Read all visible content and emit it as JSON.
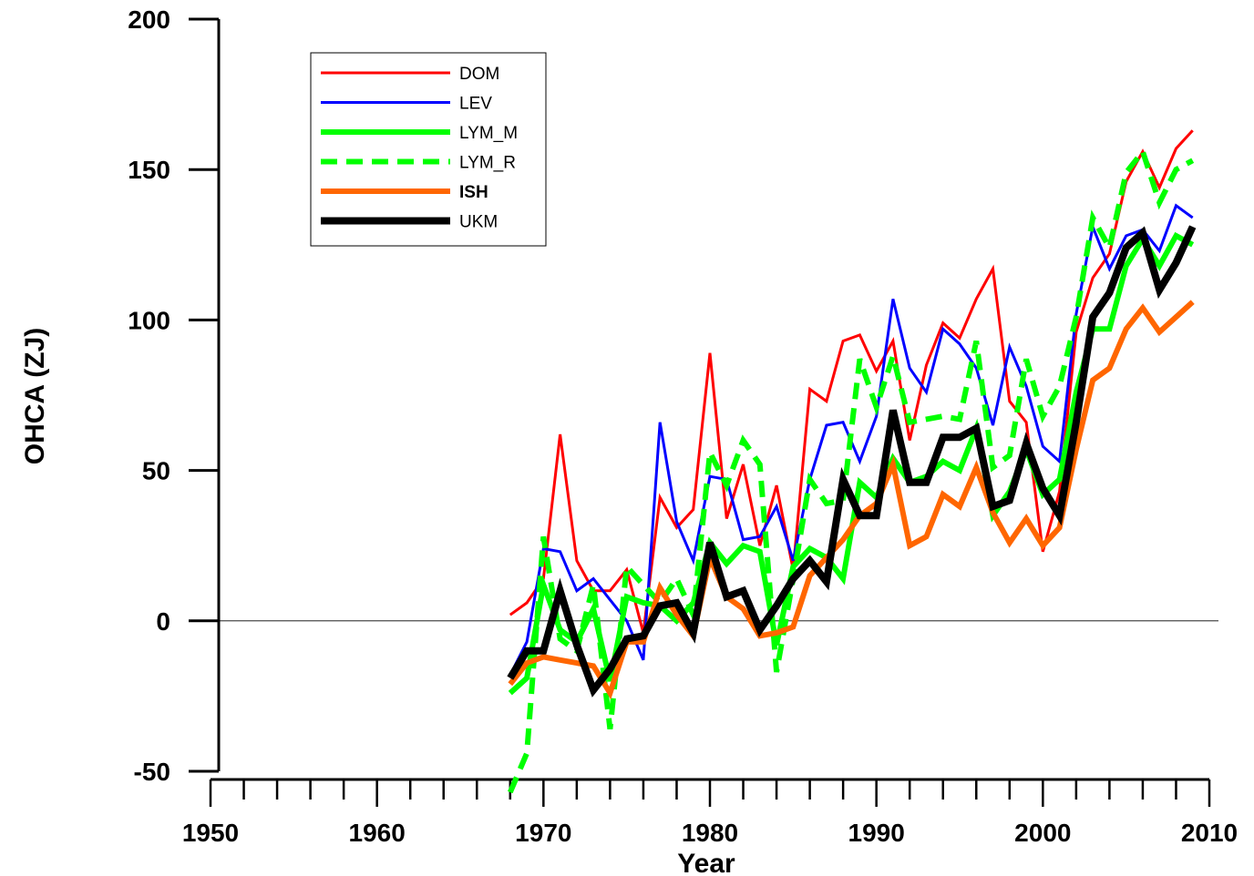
{
  "chart_data": {
    "type": "line",
    "xlabel": "Year",
    "ylabel": "OHCA (ZJ)",
    "xlim": [
      1950,
      2010
    ],
    "ylim": [
      -50,
      200
    ],
    "x_ticks": [
      1950,
      1960,
      1970,
      1980,
      1990,
      2000,
      2010
    ],
    "y_ticks": [
      -50,
      0,
      50,
      100,
      150,
      200
    ],
    "zero_line": true,
    "grid": false,
    "legend_position": "top-left",
    "series": [
      {
        "name": "DOM",
        "color": "#ff0000",
        "style": "solid-thin",
        "points": [
          [
            1968,
            2
          ],
          [
            1969,
            6
          ],
          [
            1970,
            14
          ],
          [
            1971,
            62
          ],
          [
            1972,
            20
          ],
          [
            1973,
            10
          ],
          [
            1974,
            10
          ],
          [
            1975,
            17
          ],
          [
            1976,
            -4
          ],
          [
            1977,
            41
          ],
          [
            1978,
            31
          ],
          [
            1979,
            37
          ],
          [
            1980,
            89
          ],
          [
            1981,
            34
          ],
          [
            1982,
            52
          ],
          [
            1983,
            25
          ],
          [
            1984,
            45
          ],
          [
            1985,
            17
          ],
          [
            1986,
            77
          ],
          [
            1987,
            73
          ],
          [
            1988,
            93
          ],
          [
            1989,
            95
          ],
          [
            1990,
            83
          ],
          [
            1991,
            93
          ],
          [
            1992,
            60
          ],
          [
            1993,
            85
          ],
          [
            1994,
            99
          ],
          [
            1995,
            94
          ],
          [
            1996,
            107
          ],
          [
            1997,
            117
          ],
          [
            1998,
            73
          ],
          [
            1999,
            66
          ],
          [
            2000,
            23
          ],
          [
            2001,
            43
          ],
          [
            2002,
            96
          ],
          [
            2003,
            114
          ],
          [
            2004,
            122
          ],
          [
            2005,
            146
          ],
          [
            2006,
            156
          ],
          [
            2007,
            144
          ],
          [
            2008,
            157
          ],
          [
            2009,
            163
          ]
        ]
      },
      {
        "name": "LEV",
        "color": "#0000ff",
        "style": "solid-thin",
        "points": [
          [
            1968,
            -18
          ],
          [
            1969,
            -7
          ],
          [
            1970,
            24
          ],
          [
            1971,
            23
          ],
          [
            1972,
            10
          ],
          [
            1973,
            14
          ],
          [
            1974,
            7
          ],
          [
            1975,
            0
          ],
          [
            1976,
            -13
          ],
          [
            1977,
            66
          ],
          [
            1978,
            33
          ],
          [
            1979,
            20
          ],
          [
            1980,
            48
          ],
          [
            1981,
            47
          ],
          [
            1982,
            27
          ],
          [
            1983,
            28
          ],
          [
            1984,
            38
          ],
          [
            1985,
            20
          ],
          [
            1986,
            47
          ],
          [
            1987,
            65
          ],
          [
            1988,
            66
          ],
          [
            1989,
            53
          ],
          [
            1990,
            68
          ],
          [
            1991,
            107
          ],
          [
            1992,
            84
          ],
          [
            1993,
            76
          ],
          [
            1994,
            97
          ],
          [
            1995,
            92
          ],
          [
            1996,
            84
          ],
          [
            1997,
            65
          ],
          [
            1998,
            91
          ],
          [
            1999,
            78
          ],
          [
            2000,
            58
          ],
          [
            2001,
            53
          ],
          [
            2002,
            102
          ],
          [
            2003,
            131
          ],
          [
            2004,
            117
          ],
          [
            2005,
            128
          ],
          [
            2006,
            130
          ],
          [
            2007,
            123
          ],
          [
            2008,
            138
          ],
          [
            2009,
            134
          ]
        ]
      },
      {
        "name": "LYM_M",
        "color": "#00ff00",
        "style": "solid-thick",
        "points": [
          [
            1968,
            -24
          ],
          [
            1969,
            -19
          ],
          [
            1970,
            12
          ],
          [
            1971,
            -3
          ],
          [
            1972,
            -7
          ],
          [
            1973,
            4
          ],
          [
            1974,
            -20
          ],
          [
            1975,
            8
          ],
          [
            1976,
            6
          ],
          [
            1977,
            5
          ],
          [
            1978,
            0
          ],
          [
            1979,
            6
          ],
          [
            1980,
            26
          ],
          [
            1981,
            19
          ],
          [
            1982,
            25
          ],
          [
            1983,
            23
          ],
          [
            1984,
            -8
          ],
          [
            1985,
            18
          ],
          [
            1986,
            24
          ],
          [
            1987,
            21
          ],
          [
            1988,
            14
          ],
          [
            1989,
            46
          ],
          [
            1990,
            41
          ],
          [
            1991,
            54
          ],
          [
            1992,
            46
          ],
          [
            1993,
            48
          ],
          [
            1994,
            53
          ],
          [
            1995,
            50
          ],
          [
            1996,
            64
          ],
          [
            1997,
            35
          ],
          [
            1998,
            43
          ],
          [
            1999,
            57
          ],
          [
            2000,
            42
          ],
          [
            2001,
            47
          ],
          [
            2002,
            76
          ],
          [
            2003,
            97
          ],
          [
            2004,
            97
          ],
          [
            2005,
            118
          ],
          [
            2006,
            127
          ],
          [
            2007,
            118
          ],
          [
            2008,
            128
          ],
          [
            2009,
            125
          ]
        ]
      },
      {
        "name": "LYM_R",
        "color": "#00ff00",
        "style": "dashed-thick",
        "points": [
          [
            1968,
            -57
          ],
          [
            1969,
            -44
          ],
          [
            1970,
            28
          ],
          [
            1971,
            -6
          ],
          [
            1972,
            -10
          ],
          [
            1973,
            12
          ],
          [
            1974,
            -36
          ],
          [
            1975,
            18
          ],
          [
            1976,
            12
          ],
          [
            1977,
            6
          ],
          [
            1978,
            14
          ],
          [
            1979,
            2
          ],
          [
            1980,
            56
          ],
          [
            1981,
            45
          ],
          [
            1982,
            60
          ],
          [
            1983,
            52
          ],
          [
            1984,
            -17
          ],
          [
            1985,
            14
          ],
          [
            1986,
            47
          ],
          [
            1987,
            39
          ],
          [
            1988,
            40
          ],
          [
            1989,
            87
          ],
          [
            1990,
            71
          ],
          [
            1991,
            88
          ],
          [
            1992,
            66
          ],
          [
            1993,
            67
          ],
          [
            1994,
            68
          ],
          [
            1995,
            67
          ],
          [
            1996,
            93
          ],
          [
            1997,
            51
          ],
          [
            1998,
            55
          ],
          [
            1999,
            87
          ],
          [
            2000,
            68
          ],
          [
            2001,
            78
          ],
          [
            2002,
            101
          ],
          [
            2003,
            134
          ],
          [
            2004,
            124
          ],
          [
            2005,
            149
          ],
          [
            2006,
            156
          ],
          [
            2007,
            139
          ],
          [
            2008,
            150
          ],
          [
            2009,
            153
          ]
        ]
      },
      {
        "name": "ISH",
        "color": "#ff6600",
        "style": "solid-thick",
        "points": [
          [
            1968,
            -21
          ],
          [
            1969,
            -14
          ],
          [
            1970,
            -12
          ],
          [
            1971,
            -13
          ],
          [
            1972,
            -14
          ],
          [
            1973,
            -15
          ],
          [
            1974,
            -24
          ],
          [
            1975,
            -7
          ],
          [
            1976,
            -7
          ],
          [
            1977,
            11
          ],
          [
            1978,
            2
          ],
          [
            1979,
            -5
          ],
          [
            1980,
            21
          ],
          [
            1981,
            8
          ],
          [
            1982,
            4
          ],
          [
            1983,
            -5
          ],
          [
            1984,
            -4
          ],
          [
            1985,
            -2
          ],
          [
            1986,
            15
          ],
          [
            1987,
            21
          ],
          [
            1988,
            27
          ],
          [
            1989,
            35
          ],
          [
            1990,
            39
          ],
          [
            1991,
            52
          ],
          [
            1992,
            25
          ],
          [
            1993,
            28
          ],
          [
            1994,
            42
          ],
          [
            1995,
            38
          ],
          [
            1996,
            51
          ],
          [
            1997,
            36
          ],
          [
            1998,
            26
          ],
          [
            1999,
            34
          ],
          [
            2000,
            25
          ],
          [
            2001,
            31
          ],
          [
            2002,
            57
          ],
          [
            2003,
            80
          ],
          [
            2004,
            84
          ],
          [
            2005,
            97
          ],
          [
            2006,
            104
          ],
          [
            2007,
            96
          ],
          [
            2008,
            101
          ],
          [
            2009,
            106
          ]
        ]
      },
      {
        "name": "UKM",
        "color": "#000000",
        "style": "solid-thickest",
        "points": [
          [
            1968,
            -19
          ],
          [
            1969,
            -10
          ],
          [
            1970,
            -10
          ],
          [
            1971,
            10
          ],
          [
            1972,
            -8
          ],
          [
            1973,
            -23
          ],
          [
            1974,
            -16
          ],
          [
            1975,
            -6
          ],
          [
            1976,
            -5
          ],
          [
            1977,
            5
          ],
          [
            1978,
            6
          ],
          [
            1979,
            -4
          ],
          [
            1980,
            26
          ],
          [
            1981,
            8
          ],
          [
            1982,
            10
          ],
          [
            1983,
            -3
          ],
          [
            1984,
            5
          ],
          [
            1985,
            14
          ],
          [
            1986,
            20
          ],
          [
            1987,
            13
          ],
          [
            1988,
            47
          ],
          [
            1989,
            35
          ],
          [
            1990,
            35
          ],
          [
            1991,
            70
          ],
          [
            1992,
            46
          ],
          [
            1993,
            46
          ],
          [
            1994,
            61
          ],
          [
            1995,
            61
          ],
          [
            1996,
            64
          ],
          [
            1997,
            38
          ],
          [
            1998,
            40
          ],
          [
            1999,
            59
          ],
          [
            2000,
            44
          ],
          [
            2001,
            35
          ],
          [
            2002,
            66
          ],
          [
            2003,
            101
          ],
          [
            2004,
            109
          ],
          [
            2005,
            124
          ],
          [
            2006,
            129
          ],
          [
            2007,
            110
          ],
          [
            2008,
            119
          ],
          [
            2009,
            131
          ]
        ]
      }
    ]
  }
}
